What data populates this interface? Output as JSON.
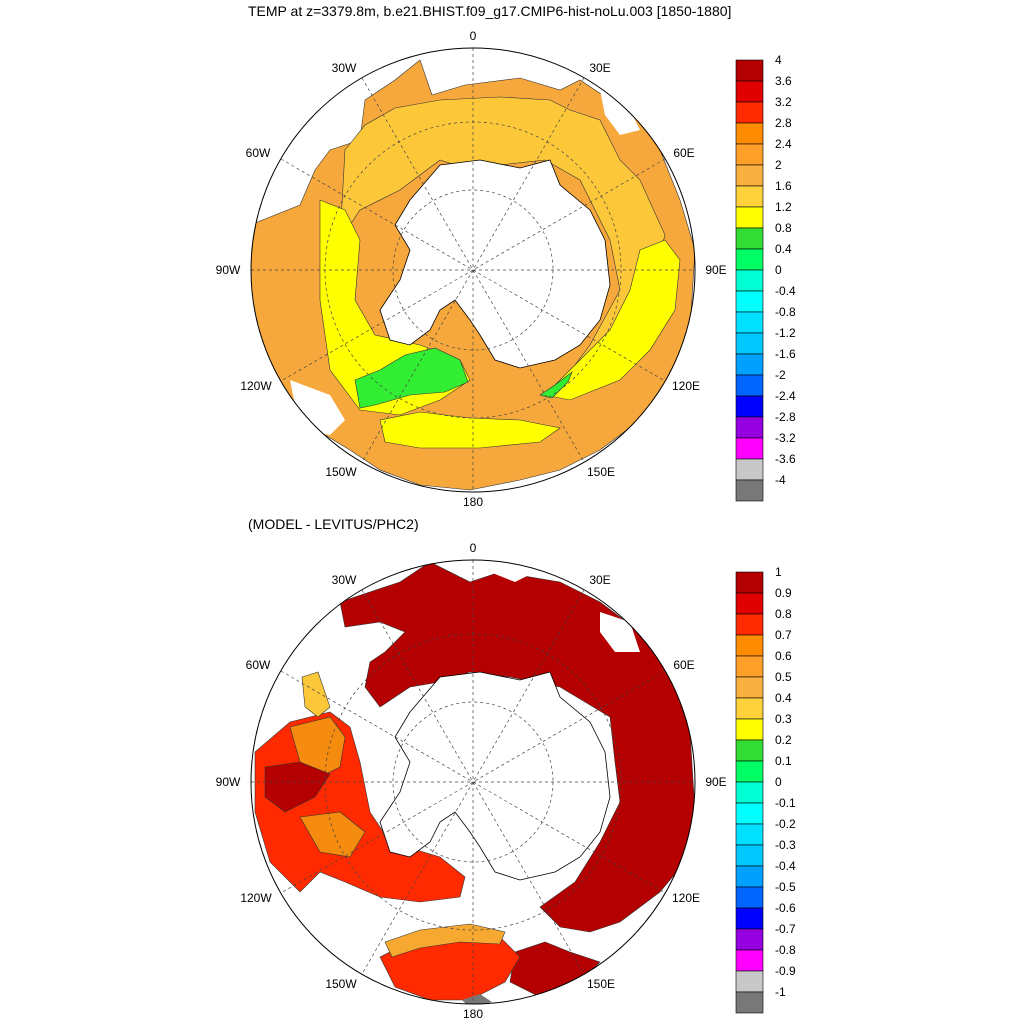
{
  "panels": [
    {
      "title": "TEMP at z=3379.8m, b.e21.BHIST.f09_g17.CMIP6-hist-noLu.003 [1850-1880]",
      "longitude_labels": [
        "0",
        "30E",
        "60E",
        "90E",
        "120E",
        "150E",
        "180",
        "150W",
        "120W",
        "90W",
        "60W",
        "30W"
      ],
      "colorbar": {
        "ticks": [
          "4",
          "3.6",
          "3.2",
          "2.8",
          "2.4",
          "2",
          "1.6",
          "1.2",
          "0.8",
          "0.4",
          "0",
          "-0.4",
          "-0.8",
          "-1.2",
          "-1.6",
          "-2",
          "-2.4",
          "-2.8",
          "-3.2",
          "-3.6",
          "-4"
        ],
        "colors": [
          "#b40000",
          "#e00000",
          "#ff2a00",
          "#ff8c00",
          "#ff9f2a",
          "#fab040",
          "#ffd23c",
          "#ffff00",
          "#32dc32",
          "#00ff64",
          "#00ffd2",
          "#00ffff",
          "#00e1ff",
          "#00c8ff",
          "#00a0ff",
          "#0064ff",
          "#0000ff",
          "#9600e1",
          "#ff00ff",
          "#c8c8c8",
          "#787878"
        ]
      }
    },
    {
      "title": "(MODEL - LEVITUS/PHC2)",
      "longitude_labels": [
        "0",
        "30E",
        "60E",
        "90E",
        "120E",
        "150E",
        "180",
        "150W",
        "120W",
        "90W",
        "60W",
        "30W"
      ],
      "colorbar": {
        "ticks": [
          "1",
          "0.9",
          "0.8",
          "0.7",
          "0.6",
          "0.5",
          "0.4",
          "0.3",
          "0.2",
          "0.1",
          "0",
          "-0.1",
          "-0.2",
          "-0.3",
          "-0.4",
          "-0.5",
          "-0.6",
          "-0.7",
          "-0.8",
          "-0.9",
          "-1"
        ],
        "colors": [
          "#b40000",
          "#e00000",
          "#ff2a00",
          "#ff8c00",
          "#ff9f2a",
          "#fab040",
          "#ffd23c",
          "#ffff00",
          "#32dc32",
          "#00ff64",
          "#00ffd2",
          "#00ffff",
          "#00e1ff",
          "#00c8ff",
          "#00a0ff",
          "#0064ff",
          "#0000ff",
          "#9600e1",
          "#ff00ff",
          "#c8c8c8",
          "#787878"
        ]
      }
    }
  ],
  "fill_colors": {
    "orange": "#f6a83c",
    "light_orange": "#fcc83a",
    "yellow": "#ffff00",
    "green": "#32ee32",
    "dark_red": "#b40000",
    "red": "#ff2a00",
    "deep_orange": "#f58c10",
    "mid_orange": "#f7a830"
  }
}
